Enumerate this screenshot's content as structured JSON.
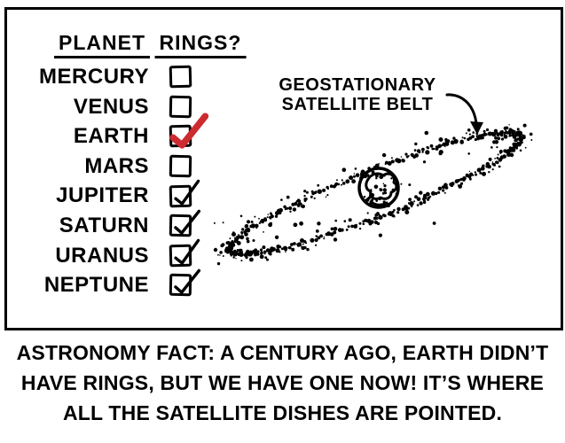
{
  "colors": {
    "ink": "#000000",
    "paper": "#ffffff",
    "check_red": "#cc2b30"
  },
  "panel": {
    "table": {
      "headers": {
        "planet": "PLANET",
        "rings": "RINGS?"
      },
      "rows": [
        {
          "planet": "MERCURY",
          "checked": false,
          "check_style": null
        },
        {
          "planet": "VENUS",
          "checked": false,
          "check_style": null
        },
        {
          "planet": "EARTH",
          "checked": true,
          "check_style": "red"
        },
        {
          "planet": "MARS",
          "checked": false,
          "check_style": null
        },
        {
          "planet": "JUPITER",
          "checked": true,
          "check_style": "black"
        },
        {
          "planet": "SATURN",
          "checked": true,
          "check_style": "black"
        },
        {
          "planet": "URANUS",
          "checked": true,
          "check_style": "black"
        },
        {
          "planet": "NEPTUNE",
          "checked": true,
          "check_style": "black"
        }
      ]
    },
    "illustration": {
      "label": {
        "line1": "GEOSTATIONARY",
        "line2": "SATELLITE BELT"
      },
      "icons": {
        "earth": "earth-globe",
        "ring": "dotted-satellite-ring",
        "arrow": "curved-arrow"
      }
    }
  },
  "caption": {
    "lines": [
      "ASTRONOMY FACT: A CENTURY AGO, EARTH DIDN’T",
      "HAVE RINGS, BUT WE HAVE ONE NOW! IT’S WHERE",
      "ALL THE SATELLITE DISHES ARE POINTED."
    ]
  }
}
